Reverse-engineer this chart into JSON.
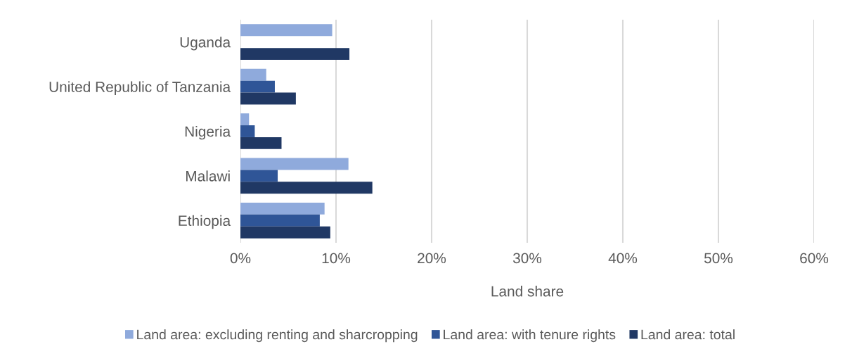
{
  "chart_data": {
    "type": "bar",
    "orientation": "horizontal",
    "xlabel": "Land share",
    "categories": [
      "Uganda",
      "United Republic of Tanzania",
      "Nigeria",
      "Malawi",
      "Ethiopia"
    ],
    "series": [
      {
        "name": "Land area: excluding renting and sharcropping",
        "color": "#8faadc",
        "values": [
          9.6,
          2.7,
          0.9,
          11.3,
          8.8
        ]
      },
      {
        "name": "Land area: with tenure rights",
        "color": "#2f5597",
        "values": [
          null,
          3.6,
          1.5,
          3.9,
          8.3
        ]
      },
      {
        "name": "Land area: total",
        "color": "#203864",
        "values": [
          11.4,
          5.8,
          4.3,
          13.8,
          9.4
        ]
      }
    ],
    "xlim": [
      0,
      60
    ],
    "xticks": [
      {
        "value": 0,
        "label": "0%"
      },
      {
        "value": 10,
        "label": "10%"
      },
      {
        "value": 20,
        "label": "20%"
      },
      {
        "value": 30,
        "label": "30%"
      },
      {
        "value": 40,
        "label": "40%"
      },
      {
        "value": 50,
        "label": "50%"
      },
      {
        "value": 60,
        "label": "60%"
      }
    ],
    "grid": "x",
    "legend": "bottom"
  }
}
